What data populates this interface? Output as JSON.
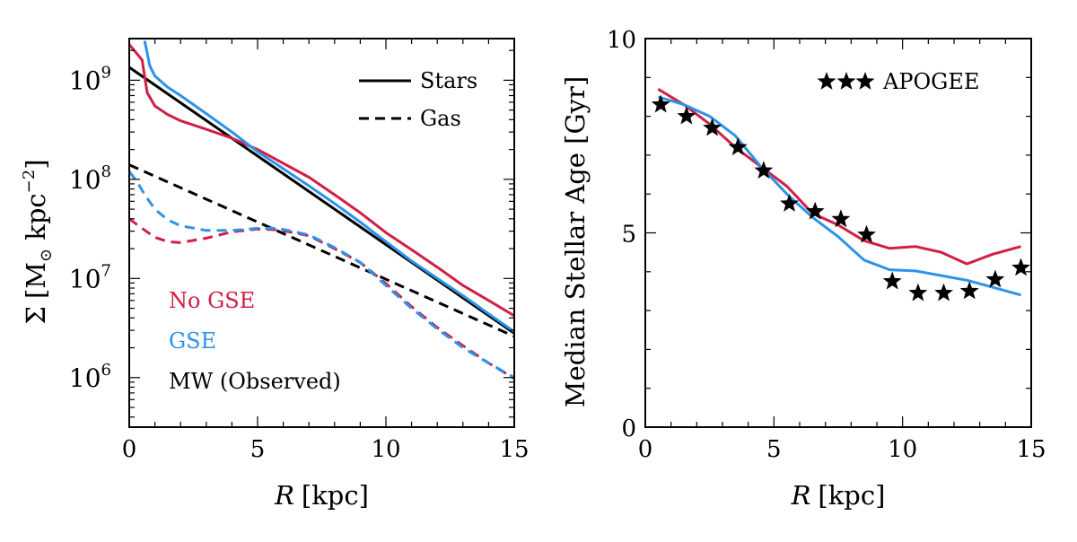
{
  "chart_data": [
    {
      "type": "line",
      "xlabel_var": "R",
      "xlabel_unit": "[kpc]",
      "ylabel_sym": "Σ",
      "ylabel_unit_prefix": "[M",
      "ylabel_unit_sub": "⊙",
      "ylabel_unit_mid": " kpc",
      "ylabel_unit_sup": "−2",
      "ylabel_unit_suffix": "]",
      "xlim": [
        0,
        15
      ],
      "ylim_log10": [
        5.5,
        9.42
      ],
      "yscale": "log",
      "xticks": [
        {
          "value": 0,
          "label": "0"
        },
        {
          "value": 5,
          "label": "5"
        },
        {
          "value": 10,
          "label": "10"
        },
        {
          "value": 15,
          "label": "15"
        }
      ],
      "yticks": [
        {
          "exp": 6,
          "base": "10",
          "sup": "6"
        },
        {
          "exp": 7,
          "base": "10",
          "sup": "7"
        },
        {
          "exp": 8,
          "base": "10",
          "sup": "8"
        },
        {
          "exp": 9,
          "base": "10",
          "sup": "9"
        }
      ],
      "legend_styles": {
        "position": "top-right",
        "items": [
          {
            "label": "Stars",
            "dash": "solid"
          },
          {
            "label": "Gas",
            "dash": "dashed"
          }
        ]
      },
      "legend_models": {
        "position": "bottom-left",
        "items": [
          {
            "label": "No GSE",
            "color": "#d11f45"
          },
          {
            "label": "GSE",
            "color": "#2b93e8"
          },
          {
            "label": "MW (Observed)",
            "color": "#000000"
          }
        ]
      },
      "series": [
        {
          "model": "MW (Observed)",
          "kind": "Stars",
          "color": "#000000",
          "dash": "solid",
          "x": [
            0,
            15
          ],
          "y": [
            1350000000.0,
            2800000.0
          ]
        },
        {
          "model": "MW (Observed)",
          "kind": "Gas",
          "color": "#000000",
          "dash": "dashed",
          "x": [
            0,
            15
          ],
          "y": [
            140000000.0,
            2600000.0
          ]
        },
        {
          "model": "No GSE",
          "kind": "Stars",
          "color": "#d11f45",
          "dash": "solid",
          "x": [
            0.0,
            0.5,
            0.7,
            1.0,
            1.5,
            2.0,
            3.0,
            4.0,
            5.0,
            6.0,
            7.0,
            8.0,
            9.0,
            10.0,
            11.0,
            12.0,
            13.0,
            14.0,
            15.0
          ],
          "y": [
            2300000000.0,
            1600000000.0,
            750000000.0,
            550000000.0,
            450000000.0,
            390000000.0,
            320000000.0,
            260000000.0,
            200000000.0,
            145000000.0,
            105000000.0,
            70000000.0,
            46000000.0,
            29000000.0,
            19500000.0,
            13000000.0,
            8500000.0,
            6000000.0,
            4200000.0
          ]
        },
        {
          "model": "GSE",
          "kind": "Stars",
          "color": "#2b93e8",
          "dash": "solid",
          "x": [
            0.6,
            0.8,
            1.0,
            1.5,
            2.0,
            3.0,
            4.0,
            5.0,
            6.0,
            7.0,
            8.0,
            9.0,
            10.0,
            11.0,
            12.0,
            13.0,
            14.0,
            15.0
          ],
          "y": [
            2500000000.0,
            1400000000.0,
            1100000000.0,
            850000000.0,
            700000000.0,
            460000000.0,
            300000000.0,
            190000000.0,
            128000000.0,
            86000000.0,
            57000000.0,
            37000000.0,
            23500000.0,
            15000000.0,
            10000000.0,
            6700000.0,
            4400000.0,
            2900000.0
          ]
        },
        {
          "model": "No GSE",
          "kind": "Gas",
          "color": "#d11f45",
          "dash": "dashed",
          "x": [
            0.0,
            0.5,
            1.0,
            1.5,
            2.0,
            3.0,
            4.0,
            5.0,
            5.8,
            7.0,
            8.0,
            9.0,
            10.0,
            11.0,
            12.0,
            13.0,
            14.0,
            15.0
          ],
          "y": [
            40000000.0,
            32000000.0,
            26000000.0,
            23500000.0,
            23000000.0,
            25500000.0,
            29500000.0,
            31500000.0,
            31000000.0,
            27000000.0,
            20000000.0,
            14500000.0,
            8900000.0,
            5200000.0,
            3200000.0,
            2100000.0,
            1400000.0,
            980000.0
          ]
        },
        {
          "model": "GSE",
          "kind": "Gas",
          "color": "#2b93e8",
          "dash": "dashed",
          "x": [
            0.0,
            0.3,
            0.6,
            1.0,
            1.5,
            2.0,
            3.0,
            4.0,
            5.0,
            5.8,
            7.0,
            8.0,
            9.0,
            10.0,
            11.0,
            12.0,
            13.0,
            14.0,
            15.0
          ],
          "y": [
            120000000.0,
            95000000.0,
            70000000.0,
            50000000.0,
            39000000.0,
            34000000.0,
            30500000.0,
            30500000.0,
            32000000.0,
            32000000.0,
            27500000.0,
            20500000.0,
            14500000.0,
            8500000.0,
            5000000.0,
            3100000.0,
            2000000.0,
            1400000.0,
            1000000.0
          ]
        }
      ]
    },
    {
      "type": "line",
      "xlabel_var": "R",
      "xlabel_unit": "[kpc]",
      "ylabel": "Median Stellar Age [Gyr]",
      "xlim": [
        0,
        15
      ],
      "ylim": [
        0,
        10
      ],
      "xticks": [
        {
          "value": 0,
          "label": "0"
        },
        {
          "value": 5,
          "label": "5"
        },
        {
          "value": 10,
          "label": "10"
        },
        {
          "value": 15,
          "label": "15"
        }
      ],
      "yticks": [
        {
          "value": 0,
          "label": "0"
        },
        {
          "value": 5,
          "label": "5"
        },
        {
          "value": 10,
          "label": "10"
        }
      ],
      "legend": {
        "position": "top-right",
        "items": [
          {
            "label": "APOGEE",
            "marker": "star",
            "color": "#000000"
          }
        ]
      },
      "series": [
        {
          "name": "No GSE",
          "color": "#d11f45",
          "x": [
            0.5,
            1.5,
            2.5,
            3.5,
            4.5,
            5.5,
            6.5,
            7.5,
            8.5,
            9.5,
            10.5,
            11.5,
            12.5,
            13.5,
            14.6
          ],
          "y": [
            8.7,
            8.3,
            7.8,
            7.2,
            6.7,
            6.2,
            5.5,
            5.2,
            4.8,
            4.6,
            4.65,
            4.5,
            4.2,
            4.45,
            4.65
          ]
        },
        {
          "name": "GSE",
          "color": "#2b93e8",
          "x": [
            0.5,
            1.5,
            2.5,
            3.5,
            4.5,
            5.5,
            6.5,
            7.5,
            8.5,
            9.5,
            10.5,
            11.5,
            12.5,
            13.5,
            14.6
          ],
          "y": [
            8.5,
            8.3,
            8.0,
            7.5,
            6.7,
            6.0,
            5.4,
            4.9,
            4.3,
            4.05,
            4.02,
            3.9,
            3.78,
            3.6,
            3.4
          ]
        },
        {
          "name": "APOGEE",
          "color": "#000000",
          "marker": "star",
          "x": [
            0.6,
            1.6,
            2.6,
            3.6,
            4.6,
            5.6,
            6.6,
            7.6,
            8.6,
            9.6,
            10.6,
            11.6,
            12.6,
            13.6,
            14.6
          ],
          "y": [
            8.3,
            8.0,
            7.7,
            7.2,
            6.6,
            5.75,
            5.55,
            5.35,
            4.95,
            3.75,
            3.45,
            3.45,
            3.5,
            3.8,
            4.1
          ]
        }
      ]
    }
  ]
}
